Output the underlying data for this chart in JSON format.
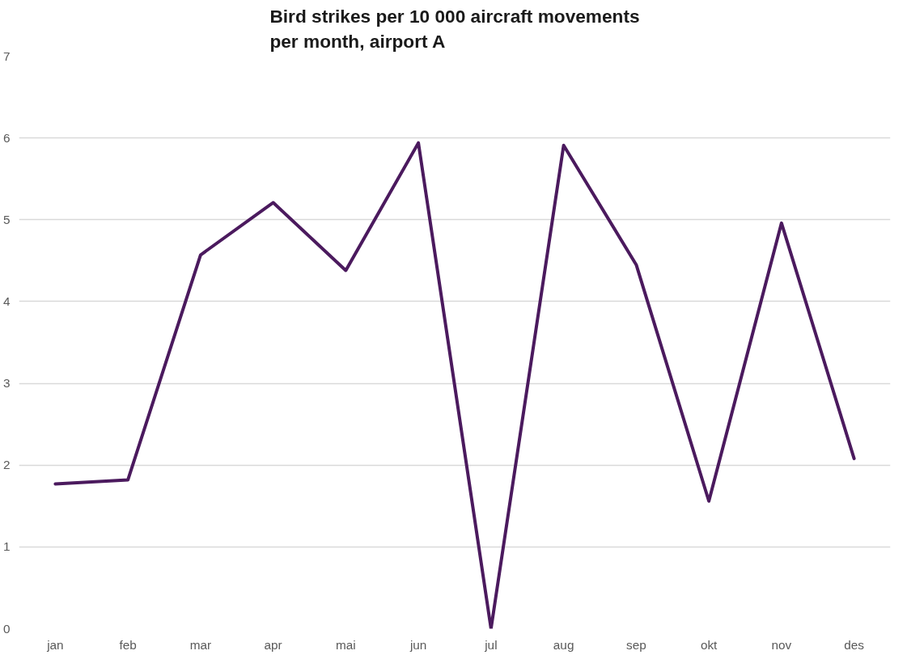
{
  "chart_data": {
    "type": "line",
    "title": "Bird strikes per 10 000 aircraft movements per month, airport A",
    "categories": [
      "jan",
      "feb",
      "mar",
      "apr",
      "mai",
      "jun",
      "jul",
      "aug",
      "sep",
      "okt",
      "nov",
      "des"
    ],
    "series": [
      {
        "color": "#4b1a5e",
        "values": [
          1.77,
          1.82,
          4.57,
          5.21,
          4.38,
          5.94,
          0,
          5.91,
          4.45,
          1.56,
          4.96,
          2.08
        ]
      }
    ],
    "ylim": [
      0,
      7
    ],
    "yticks": [
      0,
      1,
      2,
      3,
      4,
      5,
      6,
      7
    ],
    "grid": "y",
    "marker": "none",
    "line_style": "solid"
  }
}
